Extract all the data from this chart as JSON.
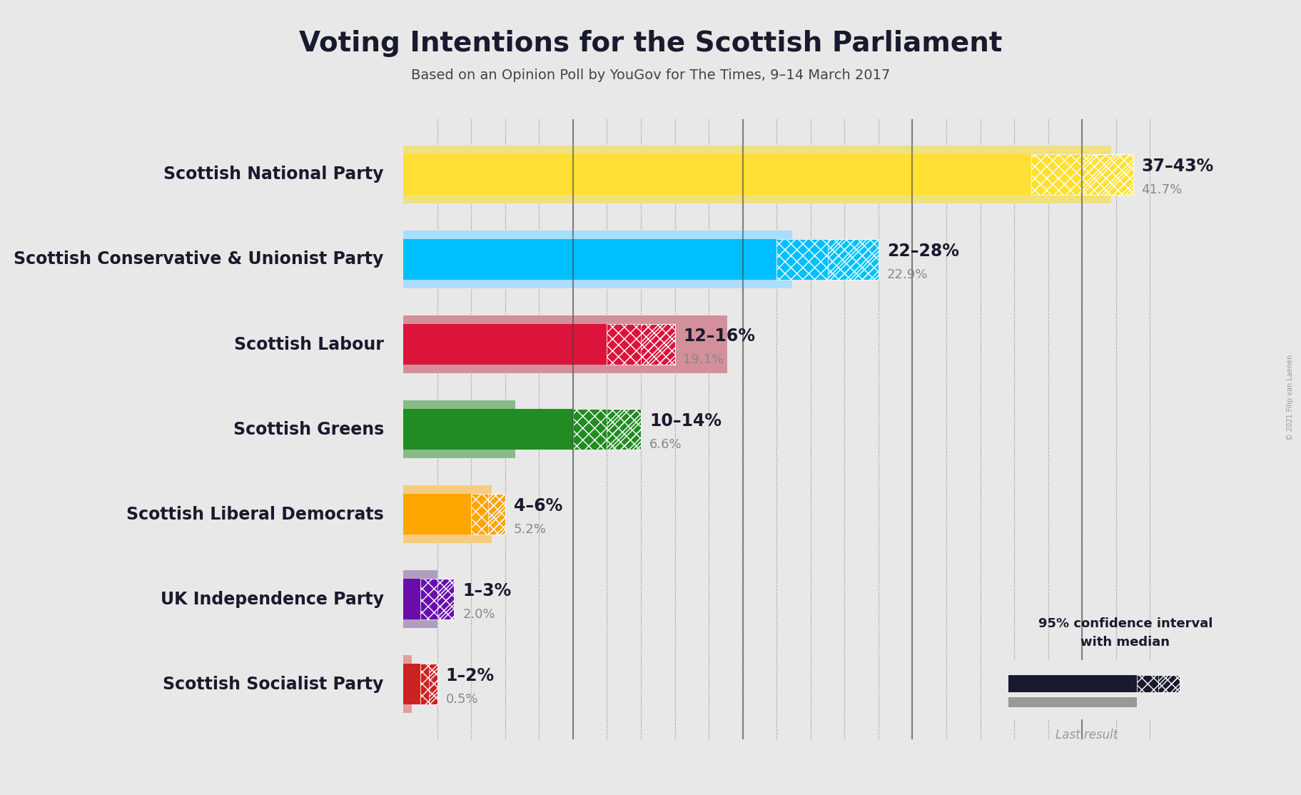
{
  "title": "Voting Intentions for the Scottish Parliament",
  "subtitle": "Based on an Opinion Poll by YouGov for The Times, 9–14 March 2017",
  "copyright": "© 2021 Filip van Laenen",
  "background_color": "#e8e8e8",
  "parties": [
    "Scottish National Party",
    "Scottish Conservative & Unionist Party",
    "Scottish Labour",
    "Scottish Greens",
    "Scottish Liberal Democrats",
    "UK Independence Party",
    "Scottish Socialist Party"
  ],
  "ci_low": [
    37,
    22,
    12,
    10,
    4,
    1,
    1
  ],
  "ci_high": [
    43,
    28,
    16,
    14,
    6,
    3,
    2
  ],
  "last_result": [
    41.7,
    22.9,
    19.1,
    6.6,
    5.2,
    2.0,
    0.5
  ],
  "range_labels": [
    "37–43%",
    "22–28%",
    "12–16%",
    "10–14%",
    "4–6%",
    "1–3%",
    "1–2%"
  ],
  "colors": [
    "#FFE033",
    "#00BFFF",
    "#DC143C",
    "#228B22",
    "#FFA500",
    "#6A0DAD",
    "#CC2222"
  ],
  "last_result_colors": [
    "#f0e080",
    "#aaddff",
    "#d4909a",
    "#88bb88",
    "#f5cc80",
    "#b09ec0",
    "#e0a0a0"
  ],
  "title_fontsize": 28,
  "subtitle_fontsize": 14,
  "label_fontsize": 17,
  "annotation_fontsize": 17
}
